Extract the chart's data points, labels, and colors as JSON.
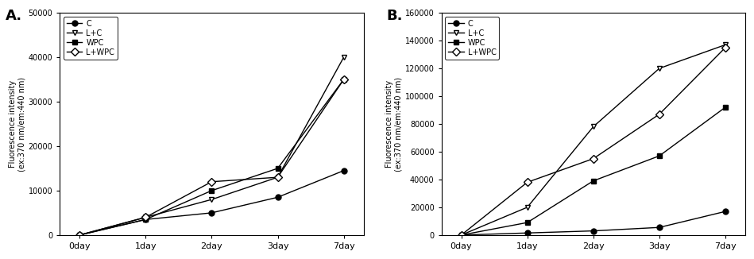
{
  "x_labels": [
    "0day",
    "1day",
    "2day",
    "3day",
    "7day"
  ],
  "panel_A": {
    "label": "A.",
    "ylim": [
      0,
      50000
    ],
    "yticks": [
      0,
      10000,
      20000,
      30000,
      40000,
      50000
    ],
    "ytick_labels": [
      "0",
      "10000",
      "20000",
      "30000",
      "40000",
      "50000"
    ],
    "series": {
      "C": {
        "y": [
          0,
          3500,
          5000,
          8500,
          14500
        ],
        "marker": "o",
        "fillstyle": "full",
        "color": "black",
        "linestyle": "-"
      },
      "L+C": {
        "y": [
          0,
          4000,
          8000,
          13000,
          40000
        ],
        "marker": "v",
        "fillstyle": "none",
        "color": "black",
        "linestyle": "-"
      },
      "WPC": {
        "y": [
          0,
          3500,
          10000,
          15000,
          35000
        ],
        "marker": "s",
        "fillstyle": "full",
        "color": "black",
        "linestyle": "-"
      },
      "L+WPC": {
        "y": [
          0,
          4000,
          12000,
          13000,
          35000
        ],
        "marker": "D",
        "fillstyle": "none",
        "color": "black",
        "linestyle": "-"
      }
    }
  },
  "panel_B": {
    "label": "B.",
    "ylim": [
      0,
      160000
    ],
    "yticks": [
      0,
      20000,
      40000,
      60000,
      80000,
      100000,
      120000,
      140000,
      160000
    ],
    "ytick_labels": [
      "0",
      "20000",
      "40000",
      "60000",
      "80000",
      "100000",
      "120000",
      "140000",
      "160000"
    ],
    "series": {
      "C": {
        "y": [
          0,
          1500,
          3000,
          5500,
          17000
        ],
        "marker": "o",
        "fillstyle": "full",
        "color": "black",
        "linestyle": "-"
      },
      "L+C": {
        "y": [
          0,
          20000,
          78000,
          120000,
          137000
        ],
        "marker": "v",
        "fillstyle": "none",
        "color": "black",
        "linestyle": "-"
      },
      "WPC": {
        "y": [
          0,
          9000,
          39000,
          57000,
          92000
        ],
        "marker": "s",
        "fillstyle": "full",
        "color": "black",
        "linestyle": "-"
      },
      "L+WPC": {
        "y": [
          0,
          38000,
          55000,
          87000,
          135000
        ],
        "marker": "D",
        "fillstyle": "none",
        "color": "black",
        "linestyle": "-"
      }
    }
  },
  "ylabel": "Fluorescence intensity\n(ex:370 nm/em:440 nm)",
  "legend_order": [
    "C",
    "L+C",
    "WPC",
    "L+WPC"
  ]
}
